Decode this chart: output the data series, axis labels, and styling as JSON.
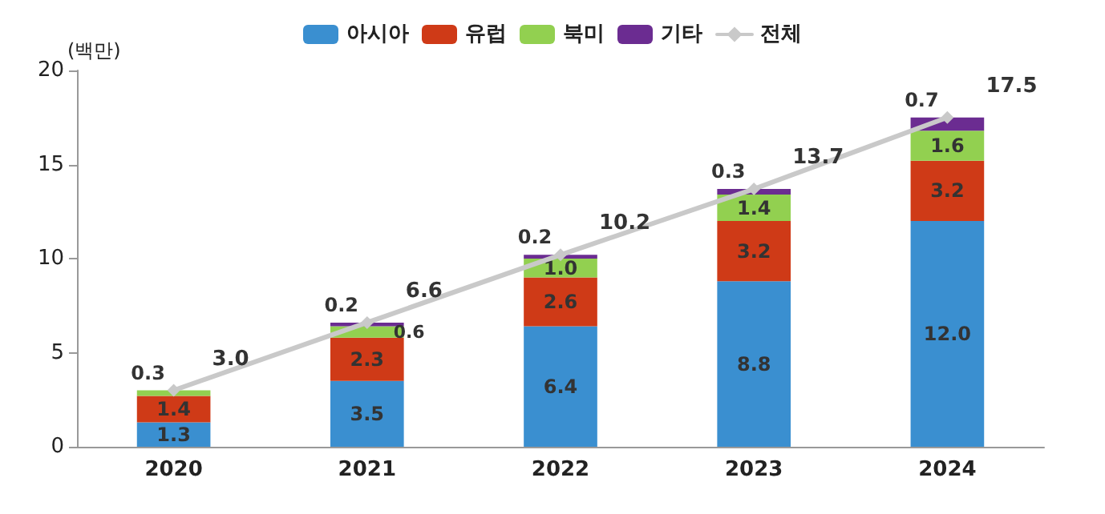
{
  "chart_data": {
    "type": "bar",
    "stacked": true,
    "ylabel": "(백만)",
    "categories": [
      "2020",
      "2021",
      "2022",
      "2023",
      "2024"
    ],
    "series": [
      {
        "name": "아시아",
        "color": "#3a8fd0",
        "values": [
          1.3,
          3.5,
          6.4,
          8.8,
          12.0
        ],
        "value_labels": [
          "1.3",
          "3.5",
          "6.4",
          "8.8",
          "12.0"
        ]
      },
      {
        "name": "유럽",
        "color": "#cf3a17",
        "values": [
          1.4,
          2.3,
          2.6,
          3.2,
          3.2
        ],
        "value_labels": [
          "1.4",
          "2.3",
          "2.6",
          "3.2",
          "3.2"
        ]
      },
      {
        "name": "북미",
        "color": "#92d050",
        "values": [
          0.3,
          0.6,
          1.0,
          1.4,
          1.6
        ],
        "value_labels": [
          "0.3",
          "0.6",
          "1.0",
          "1.4",
          "1.6"
        ]
      },
      {
        "name": "기타",
        "color": "#6b2c91",
        "values": [
          null,
          0.2,
          0.2,
          0.3,
          0.7
        ],
        "value_labels": [
          null,
          "0.2",
          "0.2",
          "0.3",
          "0.7"
        ]
      },
      {
        "name": "전체",
        "type": "line",
        "color": "#c9c9c9",
        "values": [
          3.0,
          6.6,
          10.2,
          13.7,
          17.5
        ],
        "value_labels": [
          "3.0",
          "6.6",
          "10.2",
          "13.7",
          "17.5"
        ]
      }
    ],
    "ylim": [
      0,
      20
    ],
    "yticks": [
      0,
      5,
      10,
      15,
      20
    ],
    "grid": false,
    "legend": "top",
    "data_labels": true,
    "marker": "diamond",
    "line_style": "solid"
  }
}
